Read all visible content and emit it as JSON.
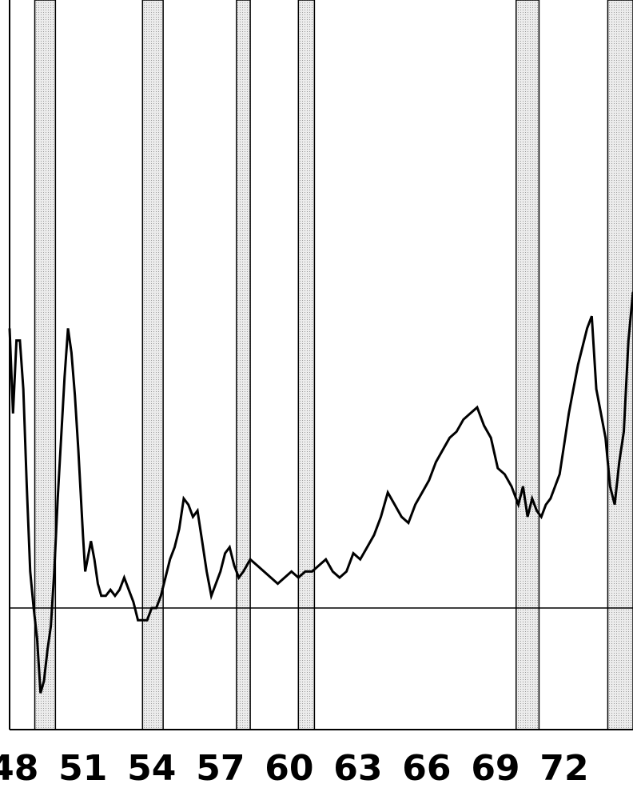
{
  "chart_data": {
    "type": "line",
    "title": "",
    "xlabel": "",
    "ylabel": "",
    "xlim": [
      1947.8,
      1975.0
    ],
    "ylim": [
      -2.0,
      10.0
    ],
    "x_tick_labels": [
      "48",
      "51",
      "54",
      "57",
      "60",
      "63",
      "66",
      "69",
      "72"
    ],
    "x_tick_values": [
      1948,
      1951,
      1954,
      1957,
      1960,
      1963,
      1966,
      1969,
      1972
    ],
    "reference_line_y": 0,
    "recession_bands": [
      {
        "start": 1948.9,
        "end": 1949.8
      },
      {
        "start": 1953.6,
        "end": 1954.5
      },
      {
        "start": 1957.7,
        "end": 1958.3
      },
      {
        "start": 1960.4,
        "end": 1961.1
      },
      {
        "start": 1969.9,
        "end": 1970.9
      },
      {
        "start": 1973.9,
        "end": 1975.0
      }
    ],
    "series": [
      {
        "x": [
          1947.8,
          1947.95,
          1948.1,
          1948.25,
          1948.4,
          1948.55,
          1948.7,
          1948.85,
          1949.0,
          1949.15,
          1949.3,
          1949.45,
          1949.6,
          1949.75,
          1949.9,
          1950.05,
          1950.2,
          1950.35,
          1950.5,
          1950.65,
          1950.8,
          1951.0,
          1951.1,
          1951.2,
          1951.35,
          1951.5,
          1951.65,
          1951.8,
          1952.0,
          1952.2,
          1952.4,
          1952.6,
          1952.8,
          1953.0,
          1953.2,
          1953.4,
          1953.6,
          1953.8,
          1954.0,
          1954.2,
          1954.4,
          1954.6,
          1954.8,
          1955.0,
          1955.2,
          1955.4,
          1955.6,
          1955.8,
          1956.0,
          1956.2,
          1956.4,
          1956.6,
          1956.8,
          1957.0,
          1957.2,
          1957.4,
          1957.6,
          1957.8,
          1958.0,
          1958.3,
          1958.6,
          1958.9,
          1959.2,
          1959.5,
          1959.8,
          1960.1,
          1960.4,
          1960.7,
          1961.0,
          1961.3,
          1961.6,
          1961.9,
          1962.2,
          1962.5,
          1962.8,
          1963.1,
          1963.4,
          1963.7,
          1964.0,
          1964.3,
          1964.6,
          1964.9,
          1965.2,
          1965.5,
          1965.8,
          1966.1,
          1966.4,
          1966.7,
          1967.0,
          1967.3,
          1967.6,
          1967.9,
          1968.2,
          1968.5,
          1968.8,
          1969.1,
          1969.4,
          1969.7,
          1970.0,
          1970.2,
          1970.4,
          1970.6,
          1970.8,
          1971.0,
          1971.2,
          1971.4,
          1971.6,
          1971.8,
          1972.0,
          1972.2,
          1972.4,
          1972.6,
          1972.8,
          1973.0,
          1973.2,
          1973.4,
          1973.6,
          1973.8,
          1974.0,
          1974.2,
          1974.4,
          1974.6,
          1974.8,
          1975.0
        ],
        "y": [
          4.6,
          3.2,
          4.4,
          4.4,
          3.6,
          2.0,
          0.6,
          0.0,
          -0.5,
          -1.4,
          -1.2,
          -0.7,
          -0.3,
          0.6,
          1.8,
          2.8,
          3.8,
          4.6,
          4.2,
          3.5,
          2.6,
          1.2,
          0.6,
          0.8,
          1.1,
          0.8,
          0.4,
          0.2,
          0.2,
          0.3,
          0.2,
          0.3,
          0.5,
          0.3,
          0.1,
          -0.2,
          -0.2,
          -0.2,
          0.0,
          0.0,
          0.2,
          0.5,
          0.8,
          1.0,
          1.3,
          1.8,
          1.7,
          1.5,
          1.6,
          1.1,
          0.6,
          0.2,
          0.4,
          0.6,
          0.9,
          1.0,
          0.7,
          0.5,
          0.6,
          0.8,
          0.7,
          0.6,
          0.5,
          0.4,
          0.5,
          0.6,
          0.5,
          0.6,
          0.6,
          0.7,
          0.8,
          0.6,
          0.5,
          0.6,
          0.9,
          0.8,
          1.0,
          1.2,
          1.5,
          1.9,
          1.7,
          1.5,
          1.4,
          1.7,
          1.9,
          2.1,
          2.4,
          2.6,
          2.8,
          2.9,
          3.1,
          3.2,
          3.3,
          3.0,
          2.8,
          2.3,
          2.2,
          2.0,
          1.7,
          2.0,
          1.5,
          1.8,
          1.6,
          1.5,
          1.7,
          1.8,
          2.0,
          2.2,
          2.7,
          3.2,
          3.6,
          4.0,
          4.3,
          4.6,
          4.8,
          3.6,
          3.2,
          2.8,
          2.0,
          1.7,
          2.4,
          2.9,
          4.4,
          5.2
        ]
      }
    ]
  }
}
